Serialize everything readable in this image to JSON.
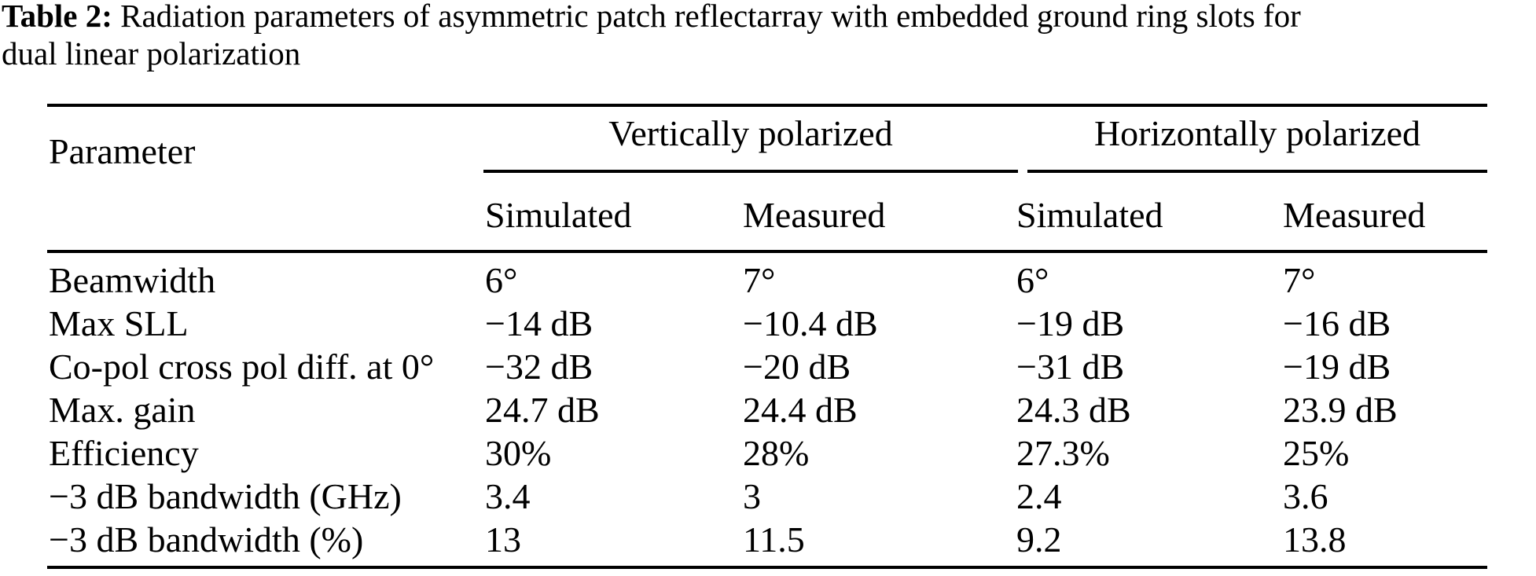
{
  "caption": {
    "label": "Table 2:",
    "line1_rest": "Radiation parameters of asymmetric patch reflectarray with embedded ground ring slots for",
    "line2": "dual linear polarization"
  },
  "table": {
    "param_header": "Parameter",
    "groups": [
      {
        "label": "Vertically polarized",
        "sub": [
          "Simulated",
          "Measured"
        ]
      },
      {
        "label": "Horizontally polarized",
        "sub": [
          "Simulated",
          "Measured"
        ]
      }
    ],
    "rows": [
      {
        "param": "Beamwidth",
        "values": [
          "6°",
          "7°",
          "6°",
          "7°"
        ]
      },
      {
        "param": "Max SLL",
        "values": [
          "−14 dB",
          "−10.4 dB",
          "−19 dB",
          "−16 dB"
        ]
      },
      {
        "param": "Co-pol cross pol diff. at 0°",
        "values": [
          "−32 dB",
          "−20 dB",
          "−31 dB",
          "−19 dB"
        ]
      },
      {
        "param": "Max. gain",
        "values": [
          "24.7 dB",
          "24.4 dB",
          "24.3 dB",
          "23.9 dB"
        ]
      },
      {
        "param": "Efficiency",
        "values": [
          "30%",
          "28%",
          "27.3%",
          "25%"
        ]
      },
      {
        "param": "−3 dB bandwidth (GHz)",
        "values": [
          "3.4",
          "3",
          "2.4",
          "3.6"
        ]
      },
      {
        "param": "−3 dB bandwidth (%)",
        "values": [
          "13",
          "11.5",
          "9.2",
          "13.8"
        ]
      }
    ],
    "text_color": "#000000",
    "background_color": "#ffffff"
  }
}
